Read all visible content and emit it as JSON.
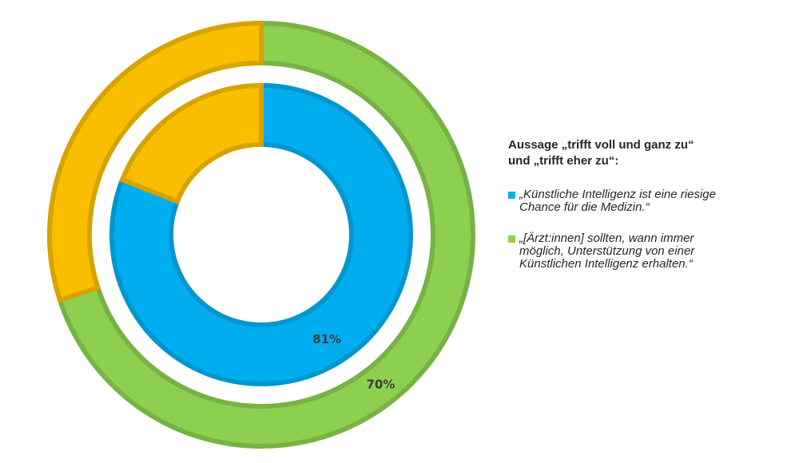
{
  "chart_data": {
    "type": "doughnut",
    "rings": [
      {
        "name": "„Künstliche Intelligenz ist eine riesige Chance für die Medizin.“",
        "value": 81,
        "value_label": "81%",
        "color": "#00AEEF",
        "remainder_color": "#F9BE00",
        "position": "inner"
      },
      {
        "name": "„[Ärzt:innen] sollten, wann immer möglich, Unterstützung von einer Künstlichen Intelligenz erhalten.“",
        "value": 70,
        "value_label": "70%",
        "color": "#8DCF4F",
        "remainder_color": "#F9BE00",
        "position": "outer"
      }
    ],
    "unit": "%",
    "legend_placement": "right"
  },
  "legend": {
    "title_lines": [
      "Aussage „trifft voll und ganz zu“",
      "und „trifft eher zu“:"
    ],
    "items": [
      {
        "lines": [
          "„Künstliche Intelligenz ist eine riesige",
          "Chance für die Medizin.“"
        ],
        "color": "#00AEEF"
      },
      {
        "lines": [
          "„[Ärzt:innen] sollten, wann immer",
          "möglich, Unterstützung von einer",
          "Künstlichen Intelligenz erhalten.“"
        ],
        "color": "#8DCF4F"
      }
    ]
  }
}
